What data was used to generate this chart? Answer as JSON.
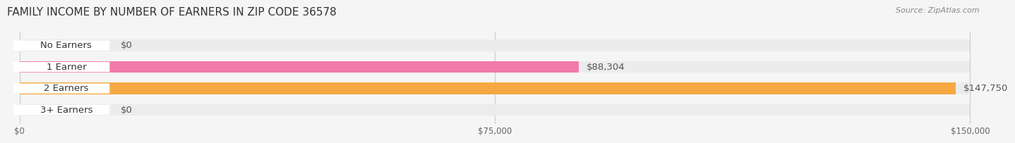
{
  "title": "FAMILY INCOME BY NUMBER OF EARNERS IN ZIP CODE 36578",
  "source": "Source: ZipAtlas.com",
  "categories": [
    "No Earners",
    "1 Earner",
    "2 Earners",
    "3+ Earners"
  ],
  "values": [
    0,
    88304,
    147750,
    0
  ],
  "max_value": 150000,
  "bar_colors": [
    "#a0a8d8",
    "#f07aaa",
    "#f5a842",
    "#f5a8a0"
  ],
  "label_colors": [
    "#a0a8d8",
    "#f07aaa",
    "#f5a842",
    "#f5a8a0"
  ],
  "value_labels": [
    "$0",
    "$88,304",
    "$147,750",
    "$0"
  ],
  "x_ticks": [
    0,
    75000,
    150000
  ],
  "x_tick_labels": [
    "$0",
    "$75,000",
    "$150,000"
  ],
  "background_color": "#f5f5f5",
  "bar_background_color": "#ececec",
  "title_fontsize": 11,
  "bar_height": 0.55,
  "label_fontsize": 9.5,
  "value_fontsize": 9.5
}
